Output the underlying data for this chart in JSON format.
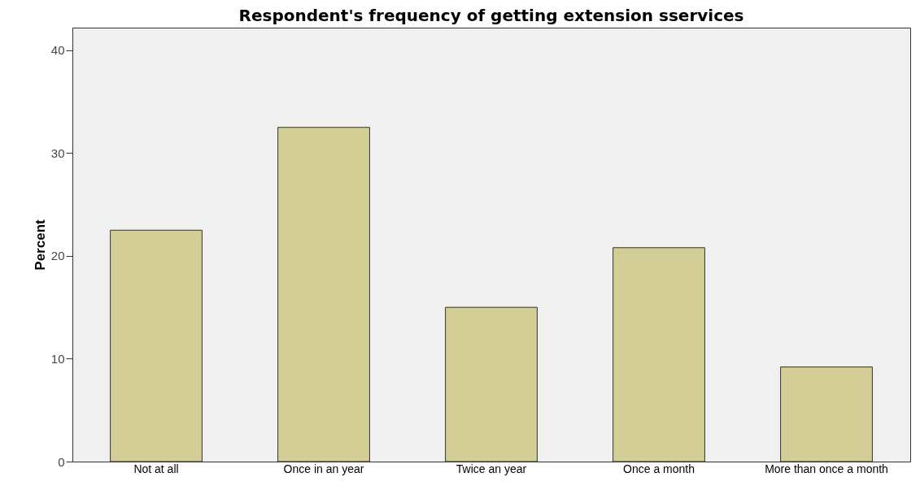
{
  "chart_data": {
    "type": "bar",
    "title": "Respondent's frequency of getting extension sservices",
    "ylabel": "Percent",
    "categories": [
      "Not at all",
      "Once in an year",
      "Twice an year",
      "Once a month",
      "More than once a month"
    ],
    "values": [
      22.5,
      32.5,
      15.0,
      20.8,
      9.2
    ],
    "color": "#d3ce96",
    "ylim": [
      0,
      42.2
    ],
    "yticks": [
      0,
      10,
      20,
      30,
      40
    ],
    "grid": false
  }
}
